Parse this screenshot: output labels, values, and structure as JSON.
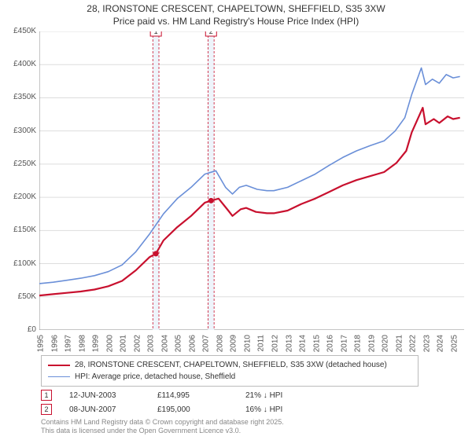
{
  "title_line1": "28, IRONSTONE CRESCENT, CHAPELTOWN, SHEFFIELD, S35 3XW",
  "title_line2": "Price paid vs. HM Land Registry's House Price Index (HPI)",
  "background_color": "#ffffff",
  "axis_color": "#888888",
  "grid_color": "#dddddd",
  "label_fontsize": 10,
  "title_fontsize": 12,
  "x": {
    "min": 1995,
    "max": 2025.8,
    "ticks": [
      1995,
      1996,
      1997,
      1998,
      1999,
      2000,
      2001,
      2002,
      2003,
      2004,
      2005,
      2006,
      2007,
      2008,
      2009,
      2010,
      2011,
      2012,
      2013,
      2014,
      2015,
      2016,
      2017,
      2018,
      2019,
      2020,
      2021,
      2022,
      2023,
      2024,
      2025
    ]
  },
  "y": {
    "min": 0,
    "max": 450000,
    "ticks": [
      0,
      50000,
      100000,
      150000,
      200000,
      250000,
      300000,
      350000,
      400000,
      450000
    ],
    "tick_labels": [
      "£0",
      "£50K",
      "£100K",
      "£150K",
      "£200K",
      "£250K",
      "£300K",
      "£350K",
      "£400K",
      "£450K"
    ]
  },
  "series": [
    {
      "name": "hpi",
      "label": "HPI: Average price, detached house, Sheffield",
      "color": "#6a8fd8",
      "width": 1.6,
      "data": [
        [
          1995,
          70000
        ],
        [
          1996,
          72000
        ],
        [
          1997,
          75000
        ],
        [
          1998,
          78000
        ],
        [
          1999,
          82000
        ],
        [
          2000,
          88000
        ],
        [
          2001,
          98000
        ],
        [
          2002,
          118000
        ],
        [
          2003,
          145000
        ],
        [
          2004,
          175000
        ],
        [
          2005,
          198000
        ],
        [
          2006,
          215000
        ],
        [
          2007,
          235000
        ],
        [
          2007.8,
          240000
        ],
        [
          2008.5,
          215000
        ],
        [
          2009,
          205000
        ],
        [
          2009.5,
          215000
        ],
        [
          2010,
          218000
        ],
        [
          2010.8,
          212000
        ],
        [
          2011.5,
          210000
        ],
        [
          2012,
          210000
        ],
        [
          2013,
          215000
        ],
        [
          2014,
          225000
        ],
        [
          2015,
          235000
        ],
        [
          2016,
          248000
        ],
        [
          2017,
          260000
        ],
        [
          2018,
          270000
        ],
        [
          2019,
          278000
        ],
        [
          2020,
          285000
        ],
        [
          2020.8,
          300000
        ],
        [
          2021.5,
          320000
        ],
        [
          2022,
          355000
        ],
        [
          2022.7,
          395000
        ],
        [
          2023,
          370000
        ],
        [
          2023.5,
          378000
        ],
        [
          2024,
          372000
        ],
        [
          2024.5,
          385000
        ],
        [
          2025,
          380000
        ],
        [
          2025.5,
          382000
        ]
      ]
    },
    {
      "name": "property",
      "label": "28, IRONSTONE CRESCENT, CHAPELTOWN, SHEFFIELD, S35 3XW (detached house)",
      "color": "#c8102e",
      "width": 2.2,
      "data": [
        [
          1995,
          52000
        ],
        [
          1996,
          54000
        ],
        [
          1997,
          56000
        ],
        [
          1998,
          58000
        ],
        [
          1999,
          61000
        ],
        [
          2000,
          66000
        ],
        [
          2001,
          74000
        ],
        [
          2002,
          90000
        ],
        [
          2003,
          110000
        ],
        [
          2003.45,
          114995
        ],
        [
          2004,
          135000
        ],
        [
          2005,
          155000
        ],
        [
          2006,
          172000
        ],
        [
          2007,
          192000
        ],
        [
          2007.45,
          195000
        ],
        [
          2008,
          198000
        ],
        [
          2008.7,
          180000
        ],
        [
          2009,
          172000
        ],
        [
          2009.6,
          182000
        ],
        [
          2010,
          184000
        ],
        [
          2010.7,
          178000
        ],
        [
          2011.5,
          176000
        ],
        [
          2012,
          176000
        ],
        [
          2013,
          180000
        ],
        [
          2014,
          190000
        ],
        [
          2015,
          198000
        ],
        [
          2016,
          208000
        ],
        [
          2017,
          218000
        ],
        [
          2018,
          226000
        ],
        [
          2019,
          232000
        ],
        [
          2020,
          238000
        ],
        [
          2020.9,
          252000
        ],
        [
          2021.6,
          270000
        ],
        [
          2022,
          298000
        ],
        [
          2022.8,
          335000
        ],
        [
          2023,
          310000
        ],
        [
          2023.6,
          318000
        ],
        [
          2024,
          312000
        ],
        [
          2024.6,
          322000
        ],
        [
          2025,
          318000
        ],
        [
          2025.5,
          320000
        ]
      ]
    }
  ],
  "markers": [
    {
      "num": "1",
      "x": 2003.45,
      "y": 114995,
      "color": "#c8102e"
    },
    {
      "num": "2",
      "x": 2007.45,
      "y": 195000,
      "color": "#c8102e"
    }
  ],
  "marker_band_color": "#eef4fb",
  "marker_band_border": "#c8102e",
  "marker_band_halfwidth": 0.22,
  "marker_label_top_offset": -10,
  "annotations": [
    {
      "num": "1",
      "date": "12-JUN-2003",
      "price": "£114,995",
      "delta": "21% ↓ HPI",
      "color": "#c8102e"
    },
    {
      "num": "2",
      "date": "08-JUN-2007",
      "price": "£195,000",
      "delta": "16% ↓ HPI",
      "color": "#c8102e"
    }
  ],
  "footer_line1": "Contains HM Land Registry data © Crown copyright and database right 2025.",
  "footer_line2": "This data is licensed under the Open Government Licence v3.0."
}
